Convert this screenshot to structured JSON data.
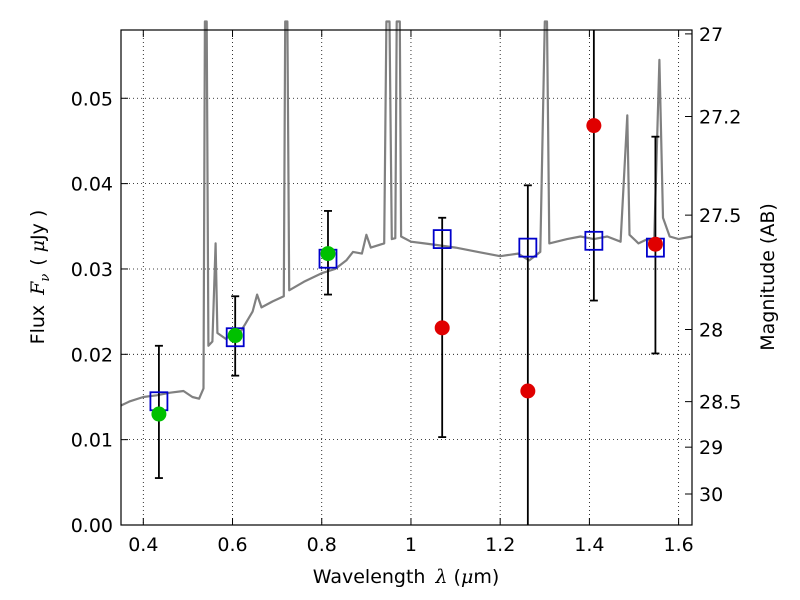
{
  "chart_data": {
    "type": "scatter",
    "xlabel_prefix": "Wavelength",
    "xlabel_symbol": "λ",
    "xlabel_unit_open": "(",
    "xlabel_unit_mu": "μ",
    "xlabel_unit_rest": "m)",
    "ylabel_prefix": "Flux",
    "ylabel_symbol_main": "F",
    "ylabel_symbol_sub": "ν",
    "ylabel_unit_open": "(",
    "ylabel_unit_mu": "μ",
    "ylabel_unit_rest": "Jy )",
    "y2label": "Magnitude (AB)",
    "xlim": [
      0.35,
      1.63
    ],
    "ylim": [
      0.0,
      0.058
    ],
    "x_ticks": [
      0.4,
      0.6,
      0.8,
      1.0,
      1.2,
      1.4,
      1.6
    ],
    "x_tick_labels": [
      "0.4",
      "0.6",
      "0.8",
      "1",
      "1.2",
      "1.4",
      "1.6"
    ],
    "y_ticks": [
      0.0,
      0.01,
      0.02,
      0.03,
      0.04,
      0.05
    ],
    "y_tick_labels": [
      "0.00",
      "0.01",
      "0.02",
      "0.03",
      "0.04",
      "0.05"
    ],
    "y2_ticks": [
      {
        "label": "27",
        "mag": 27.0
      },
      {
        "label": "27.2",
        "mag": 27.2
      },
      {
        "label": "27.5",
        "mag": 27.5
      },
      {
        "label": "28",
        "mag": 28.0
      },
      {
        "label": "28.5",
        "mag": 28.5
      },
      {
        "label": "29",
        "mag": 29.0
      },
      {
        "label": "30",
        "mag": 30.0
      }
    ],
    "grid": true,
    "grid_style": "dotted",
    "colors": {
      "spectrum": "#808080",
      "model_box": "#0000cc",
      "detected": "#00c000",
      "upper": "#e00000",
      "errorbar": "#000000"
    },
    "spectrum": [
      [
        0.35,
        0.014
      ],
      [
        0.37,
        0.0145
      ],
      [
        0.4,
        0.015
      ],
      [
        0.43,
        0.0152
      ],
      [
        0.46,
        0.0155
      ],
      [
        0.49,
        0.0157
      ],
      [
        0.51,
        0.015
      ],
      [
        0.525,
        0.0148
      ],
      [
        0.535,
        0.016
      ],
      [
        0.538,
        0.059
      ],
      [
        0.542,
        0.059
      ],
      [
        0.546,
        0.021
      ],
      [
        0.555,
        0.0215
      ],
      [
        0.562,
        0.033
      ],
      [
        0.566,
        0.0225
      ],
      [
        0.585,
        0.0218
      ],
      [
        0.6,
        0.0225
      ],
      [
        0.61,
        0.022
      ],
      [
        0.628,
        0.0235
      ],
      [
        0.645,
        0.025
      ],
      [
        0.655,
        0.027
      ],
      [
        0.665,
        0.0255
      ],
      [
        0.69,
        0.0262
      ],
      [
        0.715,
        0.0268
      ],
      [
        0.718,
        0.059
      ],
      [
        0.723,
        0.059
      ],
      [
        0.727,
        0.0275
      ],
      [
        0.76,
        0.0285
      ],
      [
        0.8,
        0.0295
      ],
      [
        0.83,
        0.03
      ],
      [
        0.855,
        0.031
      ],
      [
        0.87,
        0.032
      ],
      [
        0.89,
        0.0318
      ],
      [
        0.9,
        0.034
      ],
      [
        0.91,
        0.0325
      ],
      [
        0.94,
        0.033
      ],
      [
        0.945,
        0.059
      ],
      [
        0.952,
        0.059
      ],
      [
        0.957,
        0.0335
      ],
      [
        0.965,
        0.0336
      ],
      [
        0.968,
        0.059
      ],
      [
        0.975,
        0.059
      ],
      [
        0.978,
        0.0338
      ],
      [
        1.0,
        0.0332
      ],
      [
        1.03,
        0.033
      ],
      [
        1.06,
        0.0328
      ],
      [
        1.1,
        0.0325
      ],
      [
        1.15,
        0.032
      ],
      [
        1.2,
        0.0315
      ],
      [
        1.24,
        0.0318
      ],
      [
        1.265,
        0.031
      ],
      [
        1.29,
        0.032
      ],
      [
        1.3,
        0.059
      ],
      [
        1.305,
        0.059
      ],
      [
        1.31,
        0.033
      ],
      [
        1.35,
        0.0335
      ],
      [
        1.38,
        0.0338
      ],
      [
        1.41,
        0.0335
      ],
      [
        1.44,
        0.0338
      ],
      [
        1.47,
        0.0332
      ],
      [
        1.485,
        0.048
      ],
      [
        1.49,
        0.034
      ],
      [
        1.51,
        0.033
      ],
      [
        1.53,
        0.0335
      ],
      [
        1.545,
        0.033
      ],
      [
        1.557,
        0.0545
      ],
      [
        1.565,
        0.036
      ],
      [
        1.58,
        0.0338
      ],
      [
        1.6,
        0.0335
      ],
      [
        1.63,
        0.0338
      ]
    ],
    "model_points": [
      {
        "x": 0.435,
        "y": 0.0145
      },
      {
        "x": 0.606,
        "y": 0.022
      },
      {
        "x": 0.814,
        "y": 0.0312
      },
      {
        "x": 1.07,
        "y": 0.0335
      },
      {
        "x": 1.262,
        "y": 0.0325
      },
      {
        "x": 1.41,
        "y": 0.0333
      },
      {
        "x": 1.548,
        "y": 0.0325
      }
    ],
    "observed": [
      {
        "x": 0.435,
        "y": 0.013,
        "err_lo": 0.0055,
        "err_hi": 0.021,
        "type": "detected"
      },
      {
        "x": 0.606,
        "y": 0.0222,
        "err_lo": 0.0175,
        "err_hi": 0.0268,
        "type": "detected"
      },
      {
        "x": 0.814,
        "y": 0.0318,
        "err_lo": 0.027,
        "err_hi": 0.0368,
        "type": "detected"
      },
      {
        "x": 1.07,
        "y": 0.0231,
        "err_lo": 0.0103,
        "err_hi": 0.036,
        "type": "upper"
      },
      {
        "x": 1.262,
        "y": 0.0157,
        "err_lo": 0.0,
        "err_hi": 0.0398,
        "type": "upper"
      },
      {
        "x": 1.41,
        "y": 0.0468,
        "err_lo": 0.0263,
        "err_hi": 0.058,
        "type": "upper"
      },
      {
        "x": 1.548,
        "y": 0.0329,
        "err_lo": 0.0201,
        "err_hi": 0.0455,
        "type": "upper"
      }
    ]
  }
}
